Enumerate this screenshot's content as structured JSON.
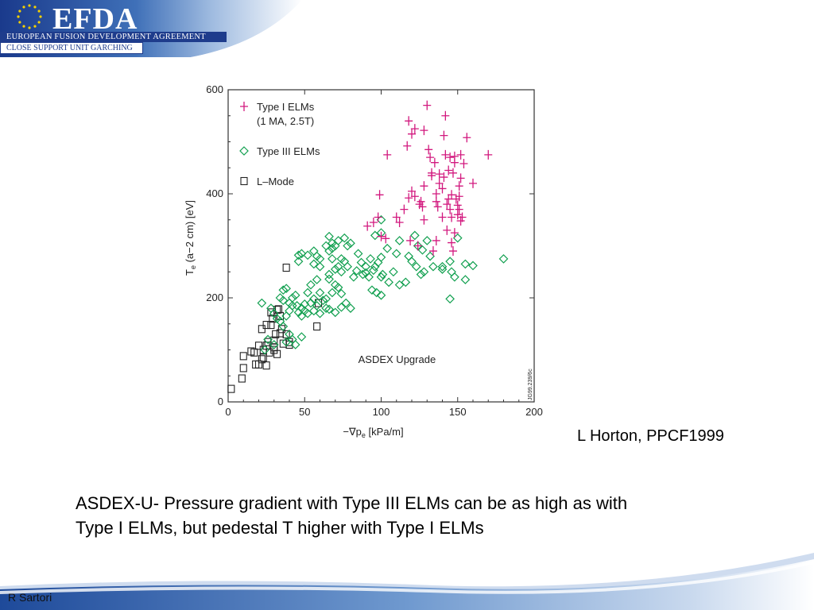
{
  "header": {
    "brand": "EFDA",
    "org_line": "EUROPEAN FUSION DEVELOPMENT AGREEMENT",
    "unit_line": "CLOSE SUPPORT UNIT GARCHING"
  },
  "colors": {
    "navy": "#1e3c8c",
    "type1": "#d2187e",
    "type3": "#12a050",
    "lmode": "#222222"
  },
  "citation": "L Horton, PPCF1999",
  "caption": {
    "line1": "ASDEX-U- Pressure gradient with Type III ELMs can be as high as with",
    "line2": "Type I ELMs, but pedestal T higher with Type I ELMs"
  },
  "footer": {
    "author": "R Sartori"
  },
  "chart_data": {
    "type": "scatter",
    "xlabel_main": "−∇p",
    "xlabel_sub": "e",
    "xlabel_rest": " [kPa/m]",
    "ylabel_main": "T",
    "ylabel_sub": "e",
    "ylabel_rest": " (a−2 cm) [eV]",
    "xlim": [
      0,
      200
    ],
    "ylim": [
      0,
      600
    ],
    "xticks": [
      0,
      50,
      100,
      150,
      200
    ],
    "yticks": [
      0,
      200,
      400,
      600
    ],
    "annotation": "ASDEX Upgrade",
    "figure_code": "JG99.239/6c",
    "legend": {
      "placement": "top-left",
      "entries": [
        {
          "label_lines": [
            "Type I ELMs",
            "(1 MA, 2.5T)"
          ],
          "marker": "plus"
        },
        {
          "label_lines": [
            "Type III ELMs"
          ],
          "marker": "diamond"
        },
        {
          "label_lines": [
            "L–Mode"
          ],
          "marker": "square"
        }
      ]
    },
    "series": [
      {
        "name": "Type I ELMs (1 MA, 2.5T)",
        "marker": "plus",
        "color": "#d2187e",
        "points": [
          [
            130,
            570
          ],
          [
            142,
            550
          ],
          [
            118,
            540
          ],
          [
            122,
            525
          ],
          [
            128,
            522
          ],
          [
            141,
            512
          ],
          [
            156,
            508
          ],
          [
            120,
            515
          ],
          [
            117,
            492
          ],
          [
            131,
            485
          ],
          [
            142,
            475
          ],
          [
            145,
            470
          ],
          [
            152,
            475
          ],
          [
            135,
            460
          ],
          [
            148,
            460
          ],
          [
            154,
            458
          ],
          [
            144,
            445
          ],
          [
            133,
            440
          ],
          [
            138,
            438
          ],
          [
            104,
            475
          ],
          [
            170,
            475
          ],
          [
            160,
            420
          ],
          [
            138,
            420
          ],
          [
            152,
            430
          ],
          [
            133,
            435
          ],
          [
            141,
            432
          ],
          [
            147,
            440
          ],
          [
            151,
            415
          ],
          [
            128,
            415
          ],
          [
            140,
            410
          ],
          [
            136,
            400
          ],
          [
            99,
            398
          ],
          [
            120,
            405
          ],
          [
            118,
            392
          ],
          [
            126,
            385
          ],
          [
            136,
            385
          ],
          [
            144,
            390
          ],
          [
            149,
            390
          ],
          [
            151,
            395
          ],
          [
            127,
            375
          ],
          [
            137,
            375
          ],
          [
            145,
            370
          ],
          [
            151,
            370
          ],
          [
            146,
            355
          ],
          [
            153,
            355
          ],
          [
            152,
            348
          ],
          [
            128,
            350
          ],
          [
            110,
            355
          ],
          [
            98,
            355
          ],
          [
            91,
            338
          ],
          [
            103,
            314
          ],
          [
            119,
            310
          ],
          [
            136,
            310
          ],
          [
            146,
            306
          ],
          [
            148,
            325
          ],
          [
            143,
            330
          ],
          [
            95,
            345
          ],
          [
            125,
            380
          ],
          [
            146,
            398
          ],
          [
            115,
            370
          ],
          [
            122,
            395
          ],
          [
            150,
            378
          ],
          [
            132,
            470
          ],
          [
            148,
            472
          ],
          [
            134,
            290
          ],
          [
            147,
            290
          ],
          [
            100,
            318
          ],
          [
            124,
            300
          ],
          [
            112,
            345
          ],
          [
            150,
            360
          ],
          [
            140,
            355
          ],
          [
            143,
            380
          ]
        ]
      },
      {
        "name": "Type III ELMs",
        "marker": "diamond",
        "color": "#12a050",
        "points": [
          [
            180,
            275
          ],
          [
            155,
            265
          ],
          [
            160,
            262
          ],
          [
            148,
            240
          ],
          [
            146,
            250
          ],
          [
            155,
            235
          ],
          [
            145,
            198
          ],
          [
            140,
            260
          ],
          [
            145,
            270
          ],
          [
            150,
            315
          ],
          [
            130,
            310
          ],
          [
            124,
            300
          ],
          [
            127,
            292
          ],
          [
            132,
            280
          ],
          [
            123,
            260
          ],
          [
            126,
            245
          ],
          [
            128,
            250
          ],
          [
            140,
            255
          ],
          [
            118,
            280
          ],
          [
            110,
            285
          ],
          [
            108,
            250
          ],
          [
            112,
            225
          ],
          [
            105,
            230
          ],
          [
            100,
            240
          ],
          [
            101,
            245
          ],
          [
            96,
            260
          ],
          [
            100,
            278
          ],
          [
            98,
            268
          ],
          [
            95,
            253
          ],
          [
            100,
            350
          ],
          [
            96,
            320
          ],
          [
            100,
            325
          ],
          [
            97,
            210
          ],
          [
            94,
            215
          ],
          [
            100,
            205
          ],
          [
            90,
            260
          ],
          [
            92,
            240
          ],
          [
            93,
            275
          ],
          [
            87,
            268
          ],
          [
            85,
            285
          ],
          [
            88,
            245
          ],
          [
            80,
            305
          ],
          [
            78,
            300
          ],
          [
            76,
            315
          ],
          [
            72,
            310
          ],
          [
            70,
            300
          ],
          [
            66,
            290
          ],
          [
            68,
            305
          ],
          [
            68,
            275
          ],
          [
            70,
            255
          ],
          [
            72,
            260
          ],
          [
            74,
            250
          ],
          [
            66,
            245
          ],
          [
            60,
            260
          ],
          [
            56,
            290
          ],
          [
            52,
            282
          ],
          [
            48,
            285
          ],
          [
            46,
            282
          ],
          [
            46,
            270
          ],
          [
            56,
            265
          ],
          [
            60,
            275
          ],
          [
            64,
            300
          ],
          [
            66,
            318
          ],
          [
            68,
            295
          ],
          [
            58,
            280
          ],
          [
            66,
            236
          ],
          [
            70,
            225
          ],
          [
            72,
            220
          ],
          [
            74,
            208
          ],
          [
            68,
            210
          ],
          [
            64,
            198
          ],
          [
            60,
            210
          ],
          [
            58,
            235
          ],
          [
            54,
            225
          ],
          [
            52,
            210
          ],
          [
            56,
            198
          ],
          [
            54,
            190
          ],
          [
            50,
            188
          ],
          [
            48,
            180
          ],
          [
            50,
            175
          ],
          [
            52,
            170
          ],
          [
            45,
            185
          ],
          [
            42,
            185
          ],
          [
            40,
            175
          ],
          [
            38,
            165
          ],
          [
            36,
            215
          ],
          [
            38,
            218
          ],
          [
            34,
            200
          ],
          [
            36,
            195
          ],
          [
            40,
            190
          ],
          [
            42,
            200
          ],
          [
            44,
            205
          ],
          [
            46,
            172
          ],
          [
            48,
            165
          ],
          [
            56,
            175
          ],
          [
            58,
            185
          ],
          [
            60,
            170
          ],
          [
            64,
            180
          ],
          [
            66,
            178
          ],
          [
            70,
            172
          ],
          [
            74,
            182
          ],
          [
            77,
            190
          ],
          [
            80,
            180
          ],
          [
            76,
            270
          ],
          [
            74,
            275
          ],
          [
            42,
            120
          ],
          [
            40,
            130
          ],
          [
            36,
            145
          ],
          [
            34,
            155
          ],
          [
            32,
            160
          ],
          [
            30,
            170
          ],
          [
            28,
            180
          ],
          [
            22,
            190
          ],
          [
            30,
            110
          ],
          [
            26,
            120
          ],
          [
            24,
            100
          ],
          [
            44,
            110
          ],
          [
            48,
            125
          ],
          [
            38,
            115
          ],
          [
            62,
            195
          ],
          [
            84,
            252
          ],
          [
            78,
            260
          ],
          [
            82,
            240
          ],
          [
            90,
            248
          ],
          [
            134,
            260
          ],
          [
            116,
            230
          ],
          [
            120,
            270
          ],
          [
            122,
            320
          ],
          [
            104,
            295
          ],
          [
            112,
            310
          ]
        ]
      },
      {
        "name": "L-Mode",
        "marker": "square",
        "color": "#222222",
        "points": [
          [
            2,
            25
          ],
          [
            9,
            45
          ],
          [
            10,
            65
          ],
          [
            10,
            88
          ],
          [
            15,
            97
          ],
          [
            17,
            95
          ],
          [
            18,
            72
          ],
          [
            20,
            72
          ],
          [
            20,
            108
          ],
          [
            23,
            85
          ],
          [
            23,
            100
          ],
          [
            22,
            140
          ],
          [
            25,
            148
          ],
          [
            25,
            108
          ],
          [
            26,
            115
          ],
          [
            27,
            95
          ],
          [
            30,
            105
          ],
          [
            30,
            118
          ],
          [
            31,
            130
          ],
          [
            28,
            148
          ],
          [
            28,
            172
          ],
          [
            29,
            160
          ],
          [
            32,
            177
          ],
          [
            33,
            178
          ],
          [
            34,
            165
          ],
          [
            35,
            140
          ],
          [
            34,
            132
          ],
          [
            38,
            130
          ],
          [
            40,
            115
          ],
          [
            36,
            112
          ],
          [
            40,
            110
          ],
          [
            38,
            258
          ],
          [
            58,
            145
          ],
          [
            59,
            190
          ],
          [
            30,
            100
          ],
          [
            25,
            70
          ],
          [
            22,
            82
          ],
          [
            32,
            92
          ]
        ]
      }
    ]
  }
}
